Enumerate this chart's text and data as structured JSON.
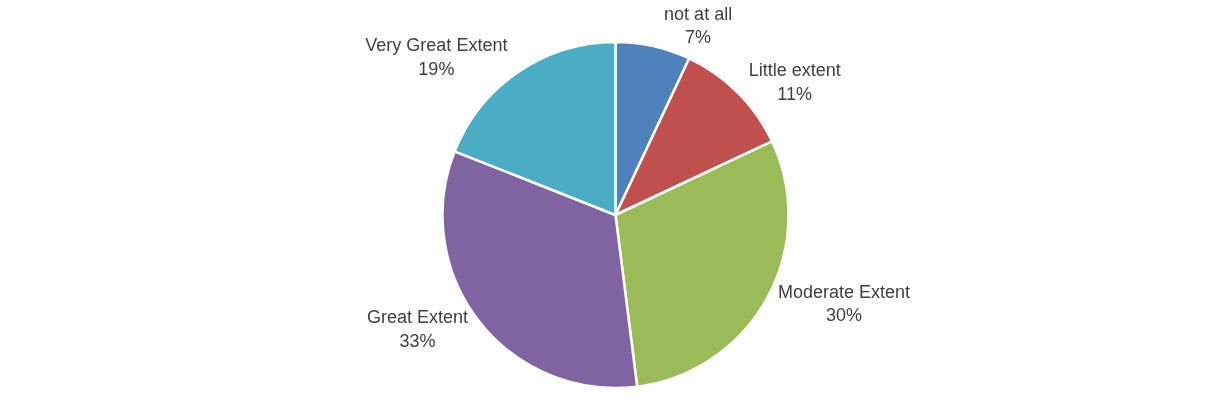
{
  "chart_data": {
    "type": "pie",
    "categories": [
      "not at all",
      "Little extent",
      "Moderate Extent",
      "Great Extent",
      "Very Great Extent"
    ],
    "values": [
      7,
      11,
      30,
      33,
      19
    ],
    "value_labels": [
      "7%",
      "11%",
      "30%",
      "33%",
      "19%"
    ],
    "colors": [
      "#4f81bd",
      "#c0504d",
      "#9bbb59",
      "#8064a2",
      "#4bacc6"
    ],
    "legend": false
  }
}
